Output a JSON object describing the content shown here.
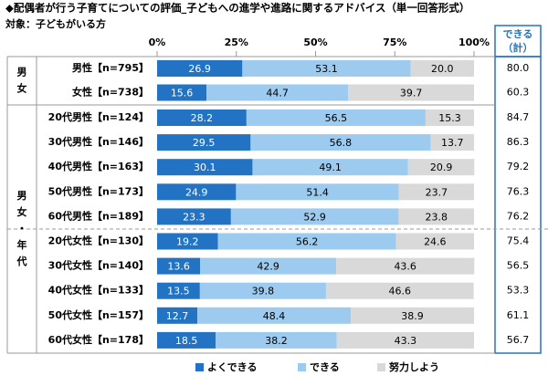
{
  "chart_data": {
    "type": "stacked-bar-horizontal",
    "title": "◆配偶者が行う子育てについての評価_子どもへの進学や進路に関するアドバイス（単一回答形式）",
    "subtitle": "対象：子どもがいる方",
    "groups": [
      "男女",
      "男女・年代"
    ],
    "categories": [
      "男性【n=795】",
      "女性【n=738】",
      "20代男性【n=124】",
      "30代男性【n=146】",
      "40代男性【n=163】",
      "50代男性【n=173】",
      "60代男性【n=189】",
      "20代女性【n=130】",
      "30代女性【n=140】",
      "40代女性【n=133】",
      "50代女性【n=157】",
      "60代女性【n=178】"
    ],
    "series": [
      {
        "name": "よくできる",
        "color": "#2273c3",
        "values": [
          26.9,
          15.6,
          28.2,
          29.5,
          30.1,
          24.9,
          23.3,
          19.2,
          13.6,
          13.5,
          12.7,
          18.5
        ]
      },
      {
        "name": "できる",
        "color": "#9ccbef",
        "values": [
          53.1,
          44.7,
          56.5,
          56.8,
          49.1,
          51.4,
          52.9,
          56.2,
          42.9,
          39.8,
          48.4,
          38.2
        ]
      },
      {
        "name": "努力しよう",
        "color": "#d9d9d9",
        "values": [
          20.0,
          39.7,
          15.3,
          13.7,
          20.9,
          23.7,
          23.8,
          24.6,
          43.6,
          46.6,
          38.9,
          43.3
        ],
        "value_labels": [
          "20.0",
          "39.7",
          "15.3",
          "13.7",
          "20.9",
          "23.7",
          "23.8",
          "24.6",
          "43.6",
          "46.6",
          "38.9",
          "43.3"
        ]
      }
    ],
    "totals": {
      "title": [
        "できる",
        "（計）"
      ],
      "values": [
        80.0,
        60.3,
        84.7,
        86.3,
        79.2,
        76.3,
        76.2,
        75.4,
        56.5,
        53.3,
        61.1,
        56.7
      ],
      "value_labels": [
        "80.0",
        "60.3",
        "84.7",
        "86.3",
        "79.2",
        "76.3",
        "76.2",
        "75.4",
        "56.5",
        "53.3",
        "61.1",
        "56.7"
      ]
    },
    "xlim": [
      0,
      100
    ],
    "xticks": [
      {
        "value": 0,
        "label": "0%"
      },
      {
        "value": 25,
        "label": "25%"
      },
      {
        "value": 50,
        "label": "50%"
      },
      {
        "value": 75,
        "label": "75%"
      },
      {
        "value": 100,
        "label": "100%"
      }
    ]
  }
}
